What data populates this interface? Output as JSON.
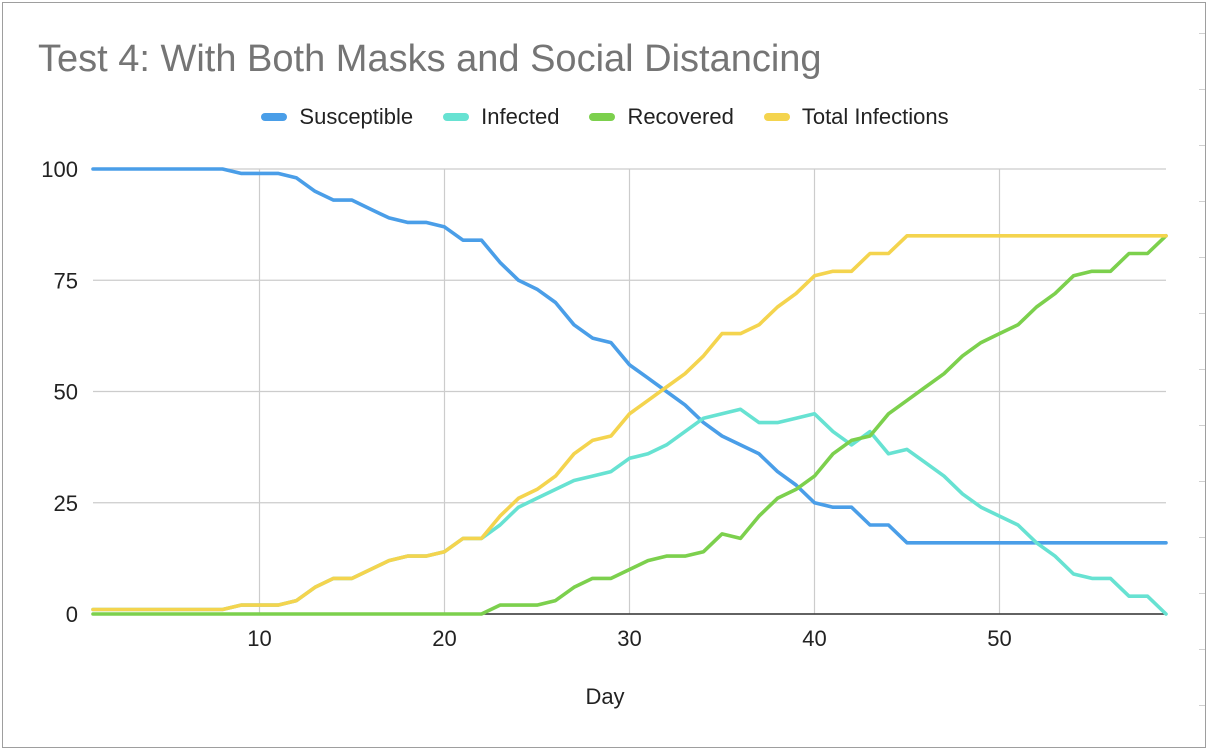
{
  "chart_data": {
    "type": "line",
    "title": "Test 4: With Both Masks and Social Distancing",
    "xlabel": "Day",
    "ylabel": "",
    "xlim": [
      1,
      59
    ],
    "ylim": [
      0,
      100
    ],
    "xticks": [
      10,
      20,
      30,
      40,
      50
    ],
    "yticks": [
      0,
      25,
      50,
      75,
      100
    ],
    "grid": true,
    "legend": "top",
    "x": [
      1,
      2,
      3,
      4,
      5,
      6,
      7,
      8,
      9,
      10,
      11,
      12,
      13,
      14,
      15,
      16,
      17,
      18,
      19,
      20,
      21,
      22,
      23,
      24,
      25,
      26,
      27,
      28,
      29,
      30,
      31,
      32,
      33,
      34,
      35,
      36,
      37,
      38,
      39,
      40,
      41,
      42,
      43,
      44,
      45,
      46,
      47,
      48,
      49,
      50,
      51,
      52,
      53,
      54,
      55,
      56,
      57,
      58,
      59
    ],
    "series": [
      {
        "name": "Susceptible",
        "color": "#4a9ee8",
        "values": [
          100,
          100,
          100,
          100,
          100,
          100,
          100,
          100,
          99,
          99,
          99,
          98,
          95,
          93,
          93,
          91,
          89,
          88,
          88,
          87,
          84,
          84,
          79,
          75,
          73,
          70,
          65,
          62,
          61,
          56,
          53,
          50,
          47,
          43,
          40,
          38,
          36,
          32,
          29,
          25,
          24,
          24,
          20,
          20,
          16,
          16,
          16,
          16,
          16,
          16,
          16,
          16,
          16,
          16,
          16,
          16,
          16,
          16,
          16
        ]
      },
      {
        "name": "Infected",
        "color": "#67e2d2",
        "values": [
          1,
          1,
          1,
          1,
          1,
          1,
          1,
          1,
          2,
          2,
          2,
          3,
          6,
          8,
          8,
          10,
          12,
          13,
          13,
          14,
          17,
          17,
          20,
          24,
          26,
          28,
          30,
          31,
          32,
          35,
          36,
          38,
          41,
          44,
          45,
          46,
          43,
          43,
          44,
          45,
          41,
          38,
          41,
          36,
          37,
          34,
          31,
          27,
          24,
          22,
          20,
          16,
          13,
          9,
          8,
          8,
          4,
          4,
          0
        ]
      },
      {
        "name": "Recovered",
        "color": "#7cd04d",
        "values": [
          0,
          0,
          0,
          0,
          0,
          0,
          0,
          0,
          0,
          0,
          0,
          0,
          0,
          0,
          0,
          0,
          0,
          0,
          0,
          0,
          0,
          0,
          2,
          2,
          2,
          3,
          6,
          8,
          8,
          10,
          12,
          13,
          13,
          14,
          18,
          17,
          22,
          26,
          28,
          31,
          36,
          39,
          40,
          45,
          48,
          51,
          54,
          58,
          61,
          63,
          65,
          69,
          72,
          76,
          77,
          77,
          81,
          81,
          85
        ]
      },
      {
        "name": "Total Infections",
        "color": "#f4d44e",
        "values": [
          1,
          1,
          1,
          1,
          1,
          1,
          1,
          1,
          2,
          2,
          2,
          3,
          6,
          8,
          8,
          10,
          12,
          13,
          13,
          14,
          17,
          17,
          22,
          26,
          28,
          31,
          36,
          39,
          40,
          45,
          48,
          51,
          54,
          58,
          63,
          63,
          65,
          69,
          72,
          76,
          77,
          77,
          81,
          81,
          85,
          85,
          85,
          85,
          85,
          85,
          85,
          85,
          85,
          85,
          85,
          85,
          85,
          85,
          85
        ]
      }
    ]
  }
}
